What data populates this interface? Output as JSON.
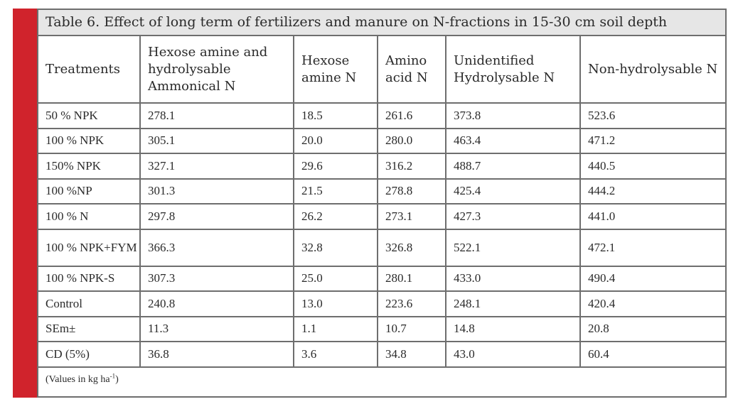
{
  "table": {
    "caption": "Table 6. Effect of long term of fertilizers and manure on N-fractions in 15-30 cm soil depth",
    "headers": [
      "Treatments",
      "Hexose amine and hydrolysable Ammonical N",
      "Hexose amine N",
      "Amino acid N",
      "Unidentified Hydrolysable N",
      "Non-hydrolysable N"
    ],
    "rows": [
      [
        "50 % NPK",
        "278.1",
        "18.5",
        "261.6",
        "373.8",
        "523.6"
      ],
      [
        "100 % NPK",
        "305.1",
        "20.0",
        "280.0",
        "463.4",
        "471.2"
      ],
      [
        "150% NPK",
        "327.1",
        "29.6",
        "316.2",
        "488.7",
        "440.5"
      ],
      [
        "100 %NP",
        "301.3",
        "21.5",
        "278.8",
        "425.4",
        "444.2"
      ],
      [
        "100 % N",
        "297.8",
        "26.2",
        "273.1",
        "427.3",
        "441.0"
      ],
      [
        "100 % NPK+FYM",
        "366.3",
        "32.8",
        "326.8",
        "522.1",
        "472.1"
      ],
      [
        "100 % NPK-S",
        "307.3",
        "25.0",
        "280.1",
        "433.0",
        "490.4"
      ],
      [
        "Control",
        "240.8",
        "13.0",
        "223.6",
        "248.1",
        "420.4"
      ],
      [
        "SEm±",
        "11.3",
        "1.1",
        "10.7",
        "14.8",
        "20.8"
      ],
      [
        "CD (5%)",
        "36.8",
        "3.6",
        "34.8",
        "43.0",
        "60.4"
      ]
    ],
    "note_prefix": "(Values in kg ha",
    "note_sup": "-1",
    "note_suffix": ")"
  }
}
